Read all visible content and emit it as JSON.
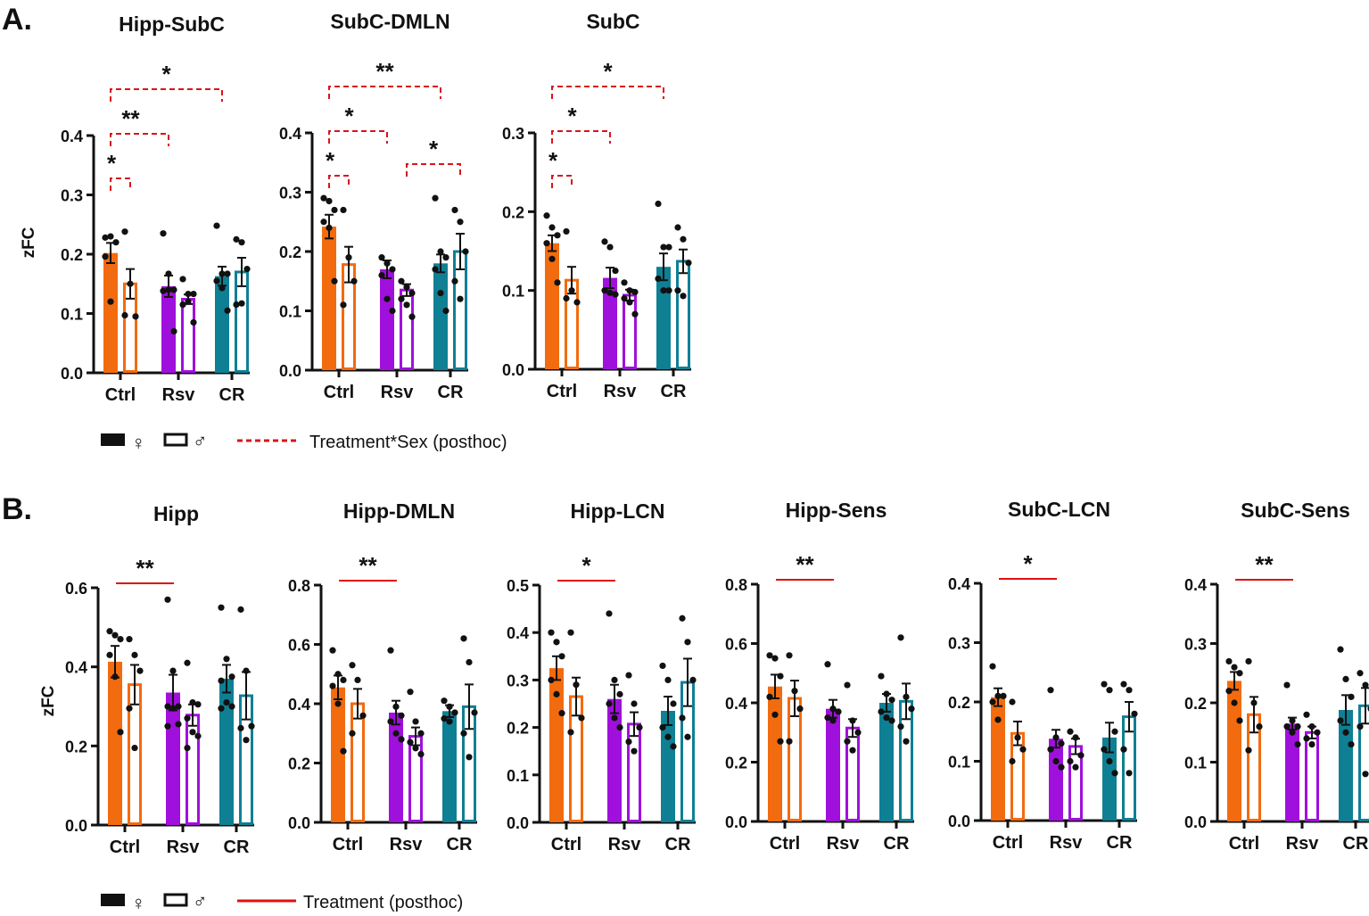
{
  "panel_labels": [
    "A.",
    "B."
  ],
  "ylabel": "zFC",
  "colors": {
    "Ctrl": "#f26b0f",
    "Rsv": "#a010dc",
    "CR": "#0f7f94",
    "sig_interaction": "#d9141c",
    "sig_treatment": "#e01010"
  },
  "legend_A": {
    "female_symbol": "♀",
    "male_symbol": "♂",
    "line_label": "Treatment*Sex (posthoc)",
    "line_style": "dashed"
  },
  "legend_B": {
    "female_symbol": "♀",
    "male_symbol": "♂",
    "line_label": "Treatment (posthoc)",
    "line_style": "solid"
  },
  "chart_data": [
    {
      "panel": "A",
      "type": "bar",
      "title": "Hipp-SubC",
      "ylim": [
        0,
        0.4
      ],
      "yticks": [
        "0.0",
        "0.1",
        "0.2",
        "0.3",
        "0.4"
      ],
      "categories": [
        "Ctrl",
        "Rsv",
        "CR"
      ],
      "series": [
        {
          "name": "female",
          "mean": [
            0.202,
            0.146,
            0.163
          ],
          "sem": [
            0.017,
            0.018,
            0.016
          ],
          "points": [
            [
              0.228,
              0.23,
              0.22,
              0.196,
              0.12
            ],
            [
              0.235,
              0.167,
              0.14,
              0.138,
              0.14,
              0.07
            ],
            [
              0.248,
              0.167,
              0.167,
              0.155,
              0.143,
              0.105
            ]
          ]
        },
        {
          "name": "male",
          "mean": [
            0.15,
            0.124,
            0.17
          ],
          "sem": [
            0.025,
            0.008,
            0.024
          ],
          "points": [
            [
              0.238,
              0.15,
              0.095,
              0.097
            ],
            [
              0.158,
              0.133,
              0.133,
              0.115,
              0.12,
              0.085
            ],
            [
              0.225,
              0.22,
              0.175,
              0.115,
              0.117
            ]
          ]
        }
      ],
      "significance": [
        {
          "from": "Ctrl-female",
          "to": "Ctrl-male",
          "label": "*",
          "kind": "interaction"
        },
        {
          "from": "Ctrl-female",
          "to": "Rsv-female",
          "label": "**",
          "kind": "interaction"
        },
        {
          "from": "Ctrl-female",
          "to": "CR-female",
          "label": "*",
          "kind": "interaction"
        }
      ]
    },
    {
      "panel": "A",
      "type": "bar",
      "title": "SubC-DMLN",
      "ylim": [
        0,
        0.4
      ],
      "yticks": [
        "0.0",
        "0.1",
        "0.2",
        "0.3",
        "0.4"
      ],
      "categories": [
        "Ctrl",
        "Rsv",
        "CR"
      ],
      "series": [
        {
          "name": "female",
          "mean": [
            0.242,
            0.17,
            0.18
          ],
          "sem": [
            0.02,
            0.015,
            0.015
          ],
          "points": [
            [
              0.29,
              0.285,
              0.27,
              0.25,
              0.24,
              0.15
            ],
            [
              0.19,
              0.18,
              0.17,
              0.16,
              0.12,
              0.1
            ],
            [
              0.29,
              0.2,
              0.19,
              0.17,
              0.13,
              0.1
            ]
          ]
        },
        {
          "name": "male",
          "mean": [
            0.178,
            0.135,
            0.2
          ],
          "sem": [
            0.03,
            0.01,
            0.03
          ],
          "points": [
            [
              0.27,
              0.19,
              0.15,
              0.11
            ],
            [
              0.15,
              0.14,
              0.13,
              0.12,
              0.11,
              0.09
            ],
            [
              0.27,
              0.25,
              0.2,
              0.15,
              0.12
            ]
          ]
        }
      ],
      "significance": [
        {
          "from": "Ctrl-female",
          "to": "Ctrl-male",
          "label": "*",
          "kind": "interaction"
        },
        {
          "from": "Ctrl-female",
          "to": "Rsv-female",
          "label": "*",
          "kind": "interaction"
        },
        {
          "from": "Ctrl-female",
          "to": "CR-female",
          "label": "**",
          "kind": "interaction"
        },
        {
          "from": "Rsv-male",
          "to": "CR-male",
          "label": "*",
          "kind": "interaction"
        }
      ]
    },
    {
      "panel": "A",
      "type": "bar",
      "title": "SubC",
      "ylim": [
        0,
        0.3
      ],
      "yticks": [
        "0.0",
        "0.1",
        "0.2",
        "0.3"
      ],
      "categories": [
        "Ctrl",
        "Rsv",
        "CR"
      ],
      "series": [
        {
          "name": "female",
          "mean": [
            0.16,
            0.116,
            0.13
          ],
          "sem": [
            0.01,
            0.013,
            0.017
          ],
          "points": [
            [
              0.195,
              0.18,
              0.17,
              0.16,
              0.14,
              0.11
            ],
            [
              0.162,
              0.155,
              0.125,
              0.1,
              0.097,
              0.095
            ],
            [
              0.21,
              0.155,
              0.155,
              0.115,
              0.1,
              0.1
            ]
          ]
        },
        {
          "name": "male",
          "mean": [
            0.113,
            0.094,
            0.137
          ],
          "sem": [
            0.017,
            0.007,
            0.015
          ],
          "points": [
            [
              0.175,
              0.1,
              0.085,
              0.09
            ],
            [
              0.11,
              0.1,
              0.098,
              0.09,
              0.085,
              0.07
            ],
            [
              0.18,
              0.165,
              0.135,
              0.1,
              0.093
            ]
          ]
        }
      ],
      "significance": [
        {
          "from": "Ctrl-female",
          "to": "Ctrl-male",
          "label": "*",
          "kind": "interaction"
        },
        {
          "from": "Ctrl-female",
          "to": "Rsv-female",
          "label": "*",
          "kind": "interaction"
        },
        {
          "from": "Ctrl-female",
          "to": "CR-female",
          "label": "*",
          "kind": "interaction"
        }
      ]
    },
    {
      "panel": "B",
      "type": "bar",
      "title": "Hipp",
      "ylim": [
        0,
        0.6
      ],
      "yticks": [
        "0.0",
        "0.2",
        "0.4",
        "0.6"
      ],
      "categories": [
        "Ctrl",
        "Rsv",
        "CR"
      ],
      "series": [
        {
          "name": "female",
          "mean": [
            0.413,
            0.335,
            0.37
          ],
          "sem": [
            0.04,
            0.045,
            0.035
          ],
          "points": [
            [
              0.49,
              0.48,
              0.47,
              0.43,
              0.375,
              0.235
            ],
            [
              0.57,
              0.39,
              0.3,
              0.3,
              0.295,
              0.255,
              0.25
            ],
            [
              0.55,
              0.42,
              0.375,
              0.365,
              0.31,
              0.3,
              0.295
            ]
          ]
        },
        {
          "name": "male",
          "mean": [
            0.355,
            0.278,
            0.327
          ],
          "sem": [
            0.05,
            0.027,
            0.06
          ],
          "points": [
            [
              0.47,
              0.43,
              0.39,
              0.295,
              0.195
            ],
            [
              0.41,
              0.31,
              0.305,
              0.27,
              0.235,
              0.225,
              0.195
            ],
            [
              0.545,
              0.39,
              0.25,
              0.245,
              0.215
            ]
          ]
        }
      ],
      "significance": [
        {
          "from": "Ctrl",
          "to": "Rsv",
          "label": "**",
          "kind": "treatment"
        }
      ]
    },
    {
      "panel": "B",
      "type": "bar",
      "title": "Hipp-DMLN",
      "ylim": [
        0,
        0.8
      ],
      "yticks": [
        "0.0",
        "0.2",
        "0.4",
        "0.6",
        "0.8"
      ],
      "categories": [
        "Ctrl",
        "Rsv",
        "CR"
      ],
      "series": [
        {
          "name": "female",
          "mean": [
            0.455,
            0.37,
            0.375
          ],
          "sem": [
            0.04,
            0.04,
            0.02
          ],
          "points": [
            [
              0.58,
              0.5,
              0.48,
              0.46,
              0.4,
              0.24
            ],
            [
              0.58,
              0.39,
              0.36,
              0.34,
              0.3,
              0.28
            ],
            [
              0.41,
              0.39,
              0.37,
              0.35,
              0.34
            ]
          ]
        },
        {
          "name": "male",
          "mean": [
            0.4,
            0.29,
            0.39
          ],
          "sem": [
            0.05,
            0.03,
            0.075
          ],
          "points": [
            [
              0.53,
              0.48,
              0.36,
              0.3
            ],
            [
              0.44,
              0.34,
              0.3,
              0.27,
              0.25,
              0.23
            ],
            [
              0.62,
              0.54,
              0.37,
              0.3,
              0.22
            ]
          ]
        }
      ],
      "significance": [
        {
          "from": "Ctrl",
          "to": "Rsv",
          "label": "**",
          "kind": "treatment"
        }
      ]
    },
    {
      "panel": "B",
      "type": "bar",
      "title": "Hipp-LCN",
      "ylim": [
        0,
        0.5
      ],
      "yticks": [
        "0.0",
        "0.1",
        "0.2",
        "0.3",
        "0.4",
        "0.5"
      ],
      "categories": [
        "Ctrl",
        "Rsv",
        "CR"
      ],
      "series": [
        {
          "name": "female",
          "mean": [
            0.325,
            0.26,
            0.235
          ],
          "sem": [
            0.025,
            0.03,
            0.03
          ],
          "points": [
            [
              0.4,
              0.38,
              0.35,
              0.3,
              0.27,
              0.23
            ],
            [
              0.44,
              0.3,
              0.27,
              0.25,
              0.22,
              0.2
            ],
            [
              0.33,
              0.3,
              0.25,
              0.2,
              0.18,
              0.16
            ]
          ]
        },
        {
          "name": "male",
          "mean": [
            0.265,
            0.207,
            0.295
          ],
          "sem": [
            0.04,
            0.025,
            0.05
          ],
          "points": [
            [
              0.4,
              0.29,
              0.22,
              0.19
            ],
            [
              0.31,
              0.25,
              0.2,
              0.17,
              0.15
            ],
            [
              0.43,
              0.38,
              0.3,
              0.22,
              0.18
            ]
          ]
        }
      ],
      "significance": [
        {
          "from": "Ctrl",
          "to": "Rsv",
          "label": "*",
          "kind": "treatment"
        }
      ]
    },
    {
      "panel": "B",
      "type": "bar",
      "title": "Hipp-Sens",
      "ylim": [
        0,
        0.8
      ],
      "yticks": [
        "0.0",
        "0.2",
        "0.4",
        "0.6",
        "0.8"
      ],
      "categories": [
        "Ctrl",
        "Rsv",
        "CR"
      ],
      "series": [
        {
          "name": "female",
          "mean": [
            0.455,
            0.38,
            0.4
          ],
          "sem": [
            0.04,
            0.03,
            0.03
          ],
          "points": [
            [
              0.56,
              0.55,
              0.49,
              0.42,
              0.36,
              0.27
            ],
            [
              0.53,
              0.38,
              0.37,
              0.35,
              0.34
            ],
            [
              0.49,
              0.43,
              0.41,
              0.37,
              0.35,
              0.34
            ]
          ]
        },
        {
          "name": "male",
          "mean": [
            0.415,
            0.315,
            0.405
          ],
          "sem": [
            0.06,
            0.03,
            0.06
          ],
          "points": [
            [
              0.56,
              0.44,
              0.38,
              0.27
            ],
            [
              0.46,
              0.34,
              0.3,
              0.27,
              0.24
            ],
            [
              0.62,
              0.42,
              0.38,
              0.32,
              0.27
            ]
          ]
        }
      ],
      "significance": [
        {
          "from": "Ctrl",
          "to": "Rsv",
          "label": "**",
          "kind": "treatment"
        }
      ]
    },
    {
      "panel": "B",
      "type": "bar",
      "title": "SubC-LCN",
      "ylim": [
        0,
        0.4
      ],
      "yticks": [
        "0.0",
        "0.1",
        "0.2",
        "0.3",
        "0.4"
      ],
      "categories": [
        "Ctrl",
        "Rsv",
        "CR"
      ],
      "series": [
        {
          "name": "female",
          "mean": [
            0.208,
            0.138,
            0.14
          ],
          "sem": [
            0.015,
            0.015,
            0.025
          ],
          "points": [
            [
              0.26,
              0.21,
              0.21,
              0.2,
              0.17
            ],
            [
              0.22,
              0.14,
              0.13,
              0.12,
              0.1,
              0.09
            ],
            [
              0.23,
              0.22,
              0.15,
              0.12,
              0.1,
              0.08
            ]
          ]
        },
        {
          "name": "male",
          "mean": [
            0.147,
            0.125,
            0.175
          ],
          "sem": [
            0.02,
            0.013,
            0.025
          ],
          "points": [
            [
              0.2,
              0.14,
              0.12,
              0.1
            ],
            [
              0.15,
              0.14,
              0.11,
              0.1,
              0.09
            ],
            [
              0.23,
              0.22,
              0.18,
              0.12,
              0.08
            ]
          ]
        }
      ],
      "significance": [
        {
          "from": "Ctrl",
          "to": "Rsv",
          "label": "*",
          "kind": "treatment"
        }
      ]
    },
    {
      "panel": "B",
      "type": "bar",
      "title": "SubC-Sens",
      "ylim": [
        0,
        0.4
      ],
      "yticks": [
        "0.0",
        "0.1",
        "0.2",
        "0.3",
        "0.4"
      ],
      "categories": [
        "Ctrl",
        "Rsv",
        "CR"
      ],
      "series": [
        {
          "name": "female",
          "mean": [
            0.237,
            0.165,
            0.188
          ],
          "sem": [
            0.015,
            0.01,
            0.025
          ],
          "points": [
            [
              0.27,
              0.26,
              0.25,
              0.22,
              0.2,
              0.17
            ],
            [
              0.23,
              0.17,
              0.16,
              0.16,
              0.15,
              0.13
            ],
            [
              0.29,
              0.24,
              0.21,
              0.17,
              0.15,
              0.13
            ]
          ]
        },
        {
          "name": "male",
          "mean": [
            0.18,
            0.15,
            0.195
          ],
          "sem": [
            0.03,
            0.01,
            0.03
          ],
          "points": [
            [
              0.27,
              0.2,
              0.16,
              0.12
            ],
            [
              0.18,
              0.16,
              0.15,
              0.14,
              0.13
            ],
            [
              0.25,
              0.23,
              0.19,
              0.16,
              0.08
            ]
          ]
        }
      ],
      "significance": [
        {
          "from": "Ctrl",
          "to": "Rsv",
          "label": "**",
          "kind": "treatment"
        }
      ]
    }
  ]
}
